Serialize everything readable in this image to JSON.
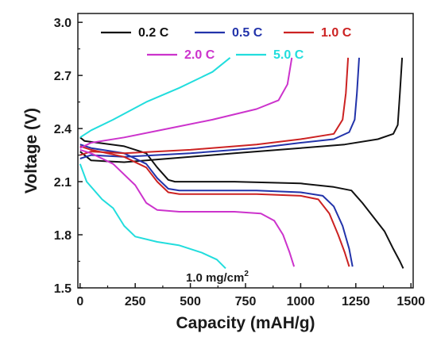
{
  "chart_data": {
    "type": "line",
    "xlabel": "Capacity (mAH/g)",
    "ylabel": "Voltage (V)",
    "xlim": [
      -10,
      1510
    ],
    "ylim": [
      1.5,
      3.05
    ],
    "xticks": [
      0,
      250,
      500,
      750,
      1000,
      1250,
      1500
    ],
    "yticks": [
      1.5,
      1.8,
      2.1,
      2.4,
      2.7,
      3.0
    ],
    "xtick_labels": [
      "0",
      "250",
      "500",
      "750",
      "1000",
      "1250",
      "1500"
    ],
    "ytick_labels": [
      "1.5",
      "1.8",
      "2.1",
      "2.4",
      "2.7",
      "3.0"
    ],
    "legend_position": "top",
    "annotation": {
      "text": "1.0 mg/cm",
      "sup": "2"
    },
    "series": [
      {
        "name": "0.2 C",
        "color": "#111111",
        "discharge": [
          [
            0,
            2.35
          ],
          [
            20,
            2.33
          ],
          [
            80,
            2.32
          ],
          [
            200,
            2.3
          ],
          [
            300,
            2.26
          ],
          [
            350,
            2.18
          ],
          [
            400,
            2.11
          ],
          [
            430,
            2.1
          ],
          [
            700,
            2.1
          ],
          [
            1000,
            2.09
          ],
          [
            1150,
            2.07
          ],
          [
            1230,
            2.05
          ],
          [
            1280,
            1.98
          ],
          [
            1330,
            1.9
          ],
          [
            1380,
            1.82
          ],
          [
            1420,
            1.72
          ],
          [
            1450,
            1.65
          ],
          [
            1465,
            1.61
          ]
        ],
        "charge": [
          [
            0,
            2.27
          ],
          [
            50,
            2.22
          ],
          [
            200,
            2.21
          ],
          [
            400,
            2.23
          ],
          [
            700,
            2.26
          ],
          [
            1000,
            2.29
          ],
          [
            1200,
            2.31
          ],
          [
            1350,
            2.34
          ],
          [
            1420,
            2.37
          ],
          [
            1440,
            2.42
          ],
          [
            1450,
            2.6
          ],
          [
            1460,
            2.8
          ]
        ]
      },
      {
        "name": "0.5 C",
        "color": "#2233aa",
        "discharge": [
          [
            0,
            2.31
          ],
          [
            50,
            2.29
          ],
          [
            200,
            2.26
          ],
          [
            300,
            2.2
          ],
          [
            350,
            2.12
          ],
          [
            400,
            2.06
          ],
          [
            450,
            2.05
          ],
          [
            800,
            2.05
          ],
          [
            1000,
            2.04
          ],
          [
            1100,
            2.02
          ],
          [
            1150,
            1.96
          ],
          [
            1190,
            1.85
          ],
          [
            1220,
            1.72
          ],
          [
            1235,
            1.62
          ]
        ],
        "charge": [
          [
            0,
            2.23
          ],
          [
            50,
            2.25
          ],
          [
            200,
            2.24
          ],
          [
            500,
            2.26
          ],
          [
            800,
            2.29
          ],
          [
            1000,
            2.32
          ],
          [
            1150,
            2.34
          ],
          [
            1220,
            2.38
          ],
          [
            1245,
            2.45
          ],
          [
            1255,
            2.6
          ],
          [
            1265,
            2.8
          ]
        ]
      },
      {
        "name": "1.0 C",
        "color": "#cc2222",
        "discharge": [
          [
            0,
            2.3
          ],
          [
            50,
            2.28
          ],
          [
            200,
            2.24
          ],
          [
            300,
            2.18
          ],
          [
            350,
            2.1
          ],
          [
            400,
            2.04
          ],
          [
            450,
            2.03
          ],
          [
            800,
            2.03
          ],
          [
            1000,
            2.02
          ],
          [
            1080,
            2.0
          ],
          [
            1130,
            1.92
          ],
          [
            1170,
            1.8
          ],
          [
            1200,
            1.7
          ],
          [
            1220,
            1.62
          ]
        ],
        "charge": [
          [
            0,
            2.25
          ],
          [
            50,
            2.27
          ],
          [
            200,
            2.26
          ],
          [
            500,
            2.28
          ],
          [
            800,
            2.31
          ],
          [
            1000,
            2.34
          ],
          [
            1150,
            2.37
          ],
          [
            1190,
            2.45
          ],
          [
            1205,
            2.6
          ],
          [
            1215,
            2.8
          ]
        ]
      },
      {
        "name": "2.0 C",
        "color": "#cc33cc",
        "discharge": [
          [
            0,
            2.28
          ],
          [
            50,
            2.26
          ],
          [
            150,
            2.2
          ],
          [
            250,
            2.08
          ],
          [
            300,
            1.98
          ],
          [
            350,
            1.94
          ],
          [
            450,
            1.93
          ],
          [
            700,
            1.93
          ],
          [
            820,
            1.92
          ],
          [
            880,
            1.88
          ],
          [
            920,
            1.8
          ],
          [
            950,
            1.7
          ],
          [
            970,
            1.62
          ]
        ],
        "charge": [
          [
            0,
            2.29
          ],
          [
            50,
            2.32
          ],
          [
            200,
            2.35
          ],
          [
            400,
            2.4
          ],
          [
            600,
            2.45
          ],
          [
            800,
            2.51
          ],
          [
            900,
            2.56
          ],
          [
            940,
            2.65
          ],
          [
            960,
            2.8
          ]
        ]
      },
      {
        "name": "5.0 C",
        "color": "#22dddd",
        "discharge": [
          [
            0,
            2.2
          ],
          [
            30,
            2.1
          ],
          [
            100,
            2.0
          ],
          [
            150,
            1.95
          ],
          [
            200,
            1.85
          ],
          [
            250,
            1.79
          ],
          [
            350,
            1.76
          ],
          [
            450,
            1.74
          ],
          [
            550,
            1.7
          ],
          [
            620,
            1.66
          ],
          [
            660,
            1.61
          ]
        ],
        "charge": [
          [
            0,
            2.35
          ],
          [
            50,
            2.39
          ],
          [
            150,
            2.45
          ],
          [
            300,
            2.55
          ],
          [
            450,
            2.63
          ],
          [
            600,
            2.72
          ],
          [
            680,
            2.8
          ]
        ]
      }
    ]
  }
}
